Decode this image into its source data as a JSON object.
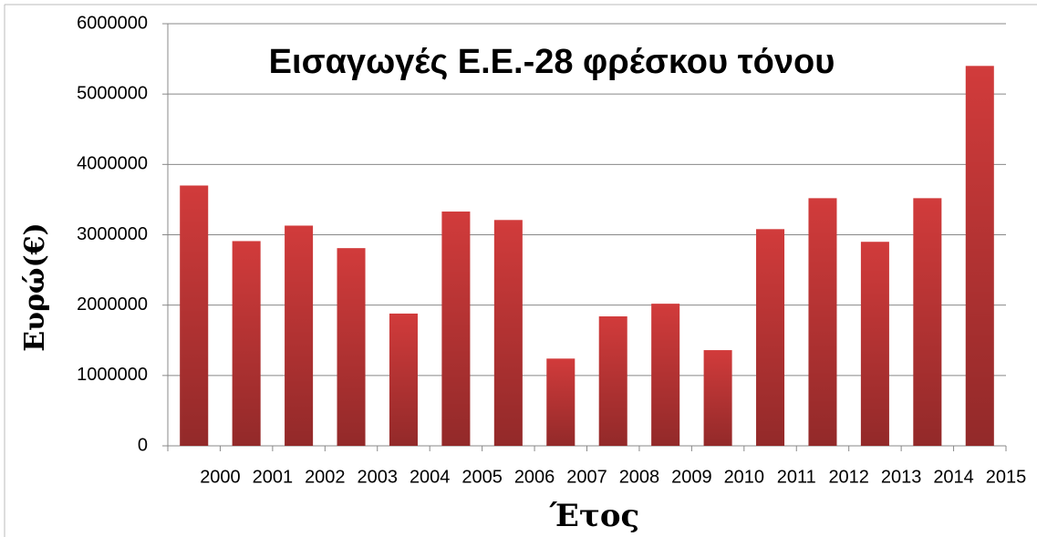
{
  "chart_data": {
    "type": "bar",
    "title": "Εισαγωγές Ε.Ε.-28 φρέσκου τόνου",
    "x_label": "Έτος",
    "y_label": "Ευρώ(€)",
    "categories": [
      "2000",
      "2001",
      "2002",
      "2003",
      "2004",
      "2005",
      "2006",
      "2007",
      "2008",
      "2009",
      "2010",
      "2011",
      "2012",
      "2013",
      "2014",
      "2015"
    ],
    "values": [
      3700000,
      2910000,
      3130000,
      2810000,
      1880000,
      3330000,
      3210000,
      1240000,
      1840000,
      2020000,
      1360000,
      3080000,
      3520000,
      2900000,
      3520000,
      5400000
    ],
    "color": "#d13b3b",
    "ylim": [
      0,
      6000000
    ],
    "yticks": [
      0,
      1000000,
      2000000,
      3000000,
      4000000,
      5000000,
      6000000
    ],
    "grid": true
  }
}
